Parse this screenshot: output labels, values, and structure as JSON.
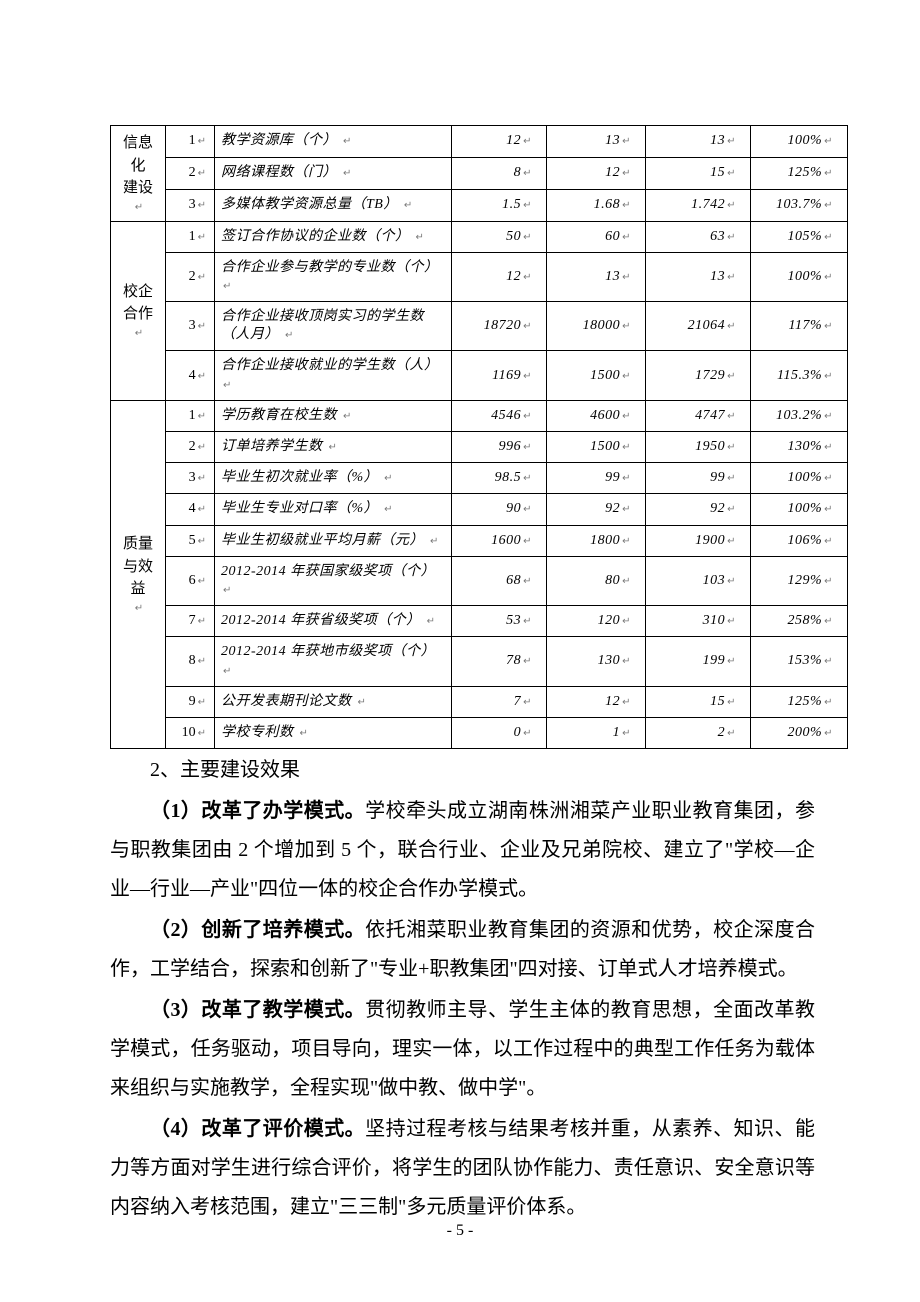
{
  "table": {
    "categories": [
      {
        "label_lines": [
          "信息",
          "化",
          "建设"
        ],
        "rows": [
          {
            "idx": "1",
            "indicator": "教学资源库（个）",
            "v1": "12",
            "v2": "13",
            "v3": "13",
            "pct": "100%"
          },
          {
            "idx": "2",
            "indicator": "网络课程数（门）",
            "v1": "8",
            "v2": "12",
            "v3": "15",
            "pct": "125%"
          },
          {
            "idx": "3",
            "indicator": "多媒体教学资源总量（TB）",
            "v1": "1.5",
            "v2": "1.68",
            "v3": "1.742",
            "pct": "103.7%"
          }
        ]
      },
      {
        "label_lines": [
          "校企",
          "合作"
        ],
        "rows": [
          {
            "idx": "1",
            "indicator": "签订合作协议的企业数（个）",
            "v1": "50",
            "v2": "60",
            "v3": "63",
            "pct": "105%"
          },
          {
            "idx": "2",
            "indicator": "合作企业参与教学的专业数（个）",
            "v1": "12",
            "v2": "13",
            "v3": "13",
            "pct": "100%"
          },
          {
            "idx": "3",
            "indicator": "合作企业接收顶岗实习的学生数（人月）",
            "v1": "18720",
            "v2": "18000",
            "v3": "21064",
            "pct": "117%"
          },
          {
            "idx": "4",
            "indicator": "合作企业接收就业的学生数（人）",
            "v1": "1169",
            "v2": "1500",
            "v3": "1729",
            "pct": "115.3%"
          }
        ]
      },
      {
        "label_lines": [
          "质量",
          "与效",
          "益"
        ],
        "rows": [
          {
            "idx": "1",
            "indicator": "学历教育在校生数",
            "v1": "4546",
            "v2": "4600",
            "v3": "4747",
            "pct": "103.2%"
          },
          {
            "idx": "2",
            "indicator": "订单培养学生数",
            "v1": "996",
            "v2": "1500",
            "v3": "1950",
            "pct": "130%"
          },
          {
            "idx": "3",
            "indicator": "毕业生初次就业率（%）",
            "v1": "98.5",
            "v2": "99",
            "v3": "99",
            "pct": "100%"
          },
          {
            "idx": "4",
            "indicator": "毕业生专业对口率（%）",
            "v1": "90",
            "v2": "92",
            "v3": "92",
            "pct": "100%"
          },
          {
            "idx": "5",
            "indicator": "毕业生初级就业平均月薪（元）",
            "v1": "1600",
            "v2": "1800",
            "v3": "1900",
            "pct": "106%"
          },
          {
            "idx": "6",
            "indicator": "2012-2014 年获国家级奖项（个）",
            "v1": "68",
            "v2": "80",
            "v3": "103",
            "pct": "129%"
          },
          {
            "idx": "7",
            "indicator": "2012-2014 年获省级奖项（个）",
            "v1": "53",
            "v2": "120",
            "v3": "310",
            "pct": "258%"
          },
          {
            "idx": "8",
            "indicator": "2012-2014 年获地市级奖项（个）",
            "v1": "78",
            "v2": "130",
            "v3": "199",
            "pct": "153%"
          },
          {
            "idx": "9",
            "indicator": "公开发表期刊论文数",
            "v1": "7",
            "v2": "12",
            "v3": "15",
            "pct": "125%"
          },
          {
            "idx": "10",
            "indicator": "学校专利数",
            "v1": "0",
            "v2": "1",
            "v3": "2",
            "pct": "200%"
          }
        ]
      }
    ]
  },
  "heading": "2、主要建设效果",
  "paragraphs": [
    {
      "lead": "（1）改革了办学模式。",
      "body": "学校牵头成立湖南株洲湘菜产业职业教育集团，参与职教集团由 2 个增加到 5 个，联合行业、企业及兄弟院校、建立了\"学校—企业—行业—产业\"四位一体的校企合作办学模式。"
    },
    {
      "lead": "（2）创新了培养模式。",
      "body": "依托湘菜职业教育集团的资源和优势，校企深度合作，工学结合，探索和创新了\"专业+职教集团\"四对接、订单式人才培养模式。"
    },
    {
      "lead": "（3）改革了教学模式。",
      "body": "贯彻教师主导、学生主体的教育思想，全面改革教学模式，任务驱动，项目导向，理实一体，以工作过程中的典型工作任务为载体来组织与实施教学，全程实现\"做中教、做中学\"。"
    },
    {
      "lead": "（4）改革了评价模式。",
      "body": "坚持过程考核与结果考核并重，从素养、知识、能力等方面对学生进行综合评价，将学生的团队协作能力、责任意识、安全意识等内容纳入考核范围，建立\"三三制\"多元质量评价体系。"
    }
  ],
  "page_number": "- 5 -",
  "return_mark": "↵"
}
